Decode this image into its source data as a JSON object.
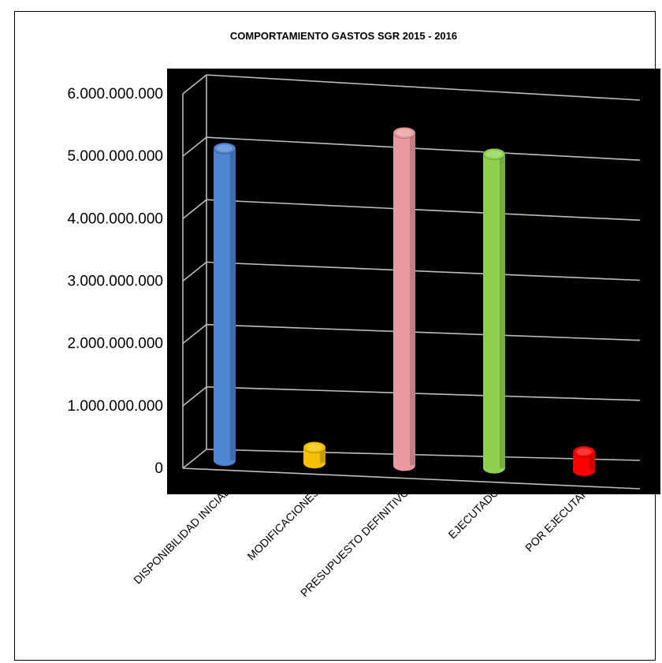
{
  "chart_data": {
    "type": "bar",
    "title": "COMPORTAMIENTO  GASTOS  SGR  2015 - 2016",
    "categories": [
      "DISPONIBILIDAD INICIAL",
      "MODIFICACIONES",
      "PRESUPUESTO DEFINITIVO",
      "EJECUTADO",
      "POR EJECUTAR"
    ],
    "values": [
      5000000000,
      250000000,
      5330000000,
      5030000000,
      300000000
    ],
    "colors": [
      "#4f86d4",
      "#f5c000",
      "#e89aa0",
      "#8fd14f",
      "#ff0000"
    ],
    "yticks": [
      "0",
      "1.000.000.000",
      "2.000.000.000",
      "3.000.000.000",
      "4.000.000.000",
      "5.000.000.000",
      "6.000.000.000"
    ],
    "ylim": [
      0,
      6000000000
    ],
    "grid": true,
    "plot_background": "#000000"
  }
}
